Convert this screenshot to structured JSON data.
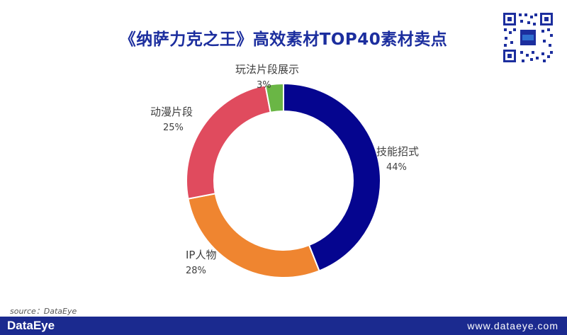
{
  "title": "《纳萨力克之王》高效素材TOP40素材卖点",
  "source": "source：DataEye",
  "footer": {
    "brand": "DataEye",
    "url": "www.dataeye.com"
  },
  "colors": {
    "title": "#1c2e9e",
    "footer_bg": "#1b2a8f"
  },
  "chart_data": {
    "type": "pie",
    "donut": true,
    "start": "top",
    "direction": "clockwise",
    "legend": "none",
    "slices": [
      {
        "label": "技能招式",
        "value": 44,
        "percent_label": "44%",
        "color": "#05058f"
      },
      {
        "label": "IP人物",
        "value": 28,
        "percent_label": "28%",
        "color": "#ef8530"
      },
      {
        "label": "动漫片段",
        "value": 25,
        "percent_label": "25%",
        "color": "#e04b5e"
      },
      {
        "label": "玩法片段展示",
        "value": 3,
        "percent_label": "3%",
        "color": "#6ab645"
      }
    ]
  }
}
